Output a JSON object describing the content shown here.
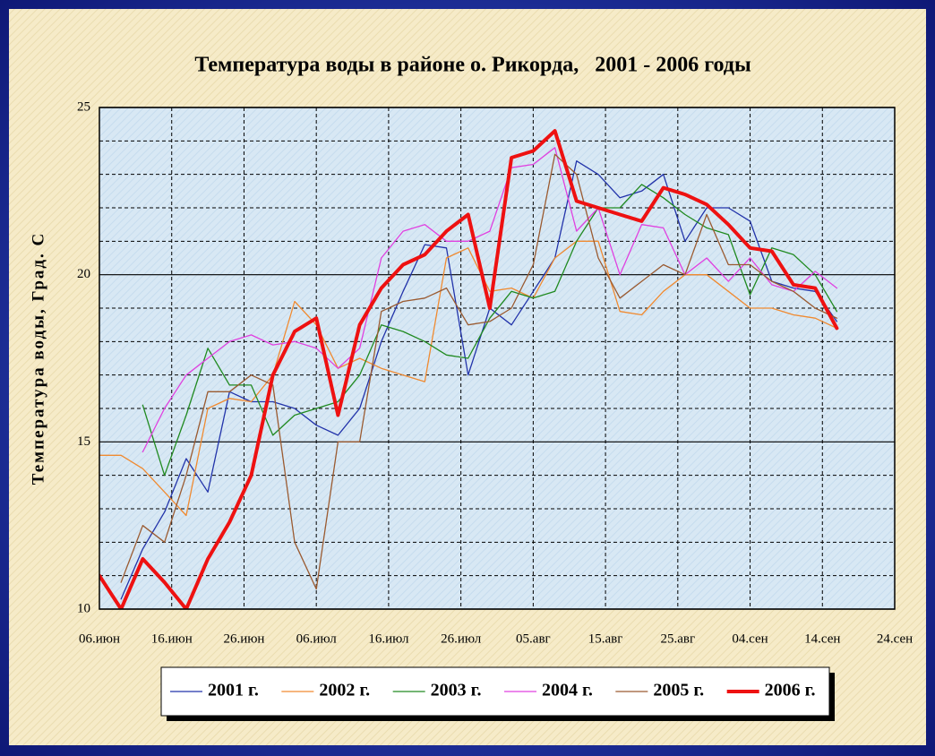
{
  "chart_data": {
    "type": "line",
    "title": "Температура воды в районе о. Рикорда,   2001 - 2006 годы",
    "ylabel": "Температура воды, Град. С",
    "x": [
      "06.июн",
      "09.июн",
      "12.июн",
      "15.июн",
      "18.июн",
      "21.июн",
      "24.июн",
      "27.июн",
      "30.июн",
      "03.июл",
      "06.июл",
      "09.июл",
      "12.июл",
      "15.июл",
      "18.июл",
      "21.июл",
      "24.июл",
      "27.июл",
      "30.июл",
      "02.авг",
      "05.авг",
      "08.авг",
      "11.авг",
      "14.авг",
      "17.авг",
      "20.авг",
      "23.авг",
      "26.авг",
      "29.авг",
      "01.сен",
      "04.сен",
      "07.сен",
      "10.сен",
      "13.сен",
      "16.сен",
      "19.сен"
    ],
    "xticks": [
      "06.июн",
      "16.июн",
      "26.июн",
      "06.июл",
      "16.июл",
      "26.июл",
      "05.авг",
      "15.авг",
      "25.авг",
      "04.сен",
      "14.сен",
      "24.сен"
    ],
    "ylim": [
      10,
      25
    ],
    "yticks": [
      10,
      15,
      20,
      25
    ],
    "yminor": [
      11,
      12,
      13,
      14,
      16,
      17,
      18,
      19,
      21,
      22,
      23,
      24
    ],
    "grid": true,
    "legend": "bottom",
    "series": [
      {
        "name": "2001 г.",
        "color": "#2233aa",
        "width": 1.3,
        "values": [
          null,
          10.3,
          11.8,
          12.9,
          14.5,
          13.5,
          16.5,
          16.2,
          16.2,
          16.0,
          15.5,
          15.2,
          16.0,
          18.0,
          19.5,
          20.9,
          20.8,
          17.0,
          19.0,
          18.5,
          19.5,
          20.5,
          23.4,
          23.0,
          22.3,
          22.5,
          23.0,
          21.0,
          22.0,
          22.0,
          21.6,
          19.8,
          19.6,
          19.5,
          18.6,
          null
        ]
      },
      {
        "name": "2002 г.",
        "color": "#f08a30",
        "width": 1.3,
        "values": [
          14.6,
          14.6,
          14.2,
          13.5,
          12.8,
          16.0,
          16.3,
          16.2,
          17.0,
          19.2,
          18.5,
          17.2,
          17.5,
          17.2,
          17.0,
          16.8,
          20.5,
          20.8,
          19.5,
          19.6,
          19.3,
          20.5,
          21.0,
          21.0,
          18.9,
          18.8,
          19.5,
          20.0,
          20.0,
          19.5,
          19.0,
          19.0,
          18.8,
          18.7,
          18.4,
          null
        ]
      },
      {
        "name": "2003 г.",
        "color": "#208a20",
        "width": 1.3,
        "values": [
          null,
          null,
          16.1,
          14.0,
          15.8,
          17.8,
          16.7,
          16.7,
          15.2,
          15.8,
          16.0,
          16.2,
          17.0,
          18.5,
          18.3,
          18.0,
          17.6,
          17.5,
          18.7,
          19.5,
          19.3,
          19.5,
          21.0,
          22.0,
          22.0,
          22.7,
          22.3,
          21.8,
          21.4,
          21.2,
          19.4,
          20.8,
          20.6,
          20.0,
          18.9,
          null
        ]
      },
      {
        "name": "2004 г.",
        "color": "#e040e0",
        "width": 1.3,
        "values": [
          null,
          null,
          14.7,
          16.0,
          17.0,
          17.5,
          18.0,
          18.2,
          17.9,
          18.0,
          17.8,
          17.2,
          17.8,
          20.5,
          21.3,
          21.5,
          21.0,
          21.0,
          21.3,
          23.2,
          23.3,
          23.8,
          21.3,
          22.0,
          20.0,
          21.5,
          21.4,
          20.0,
          20.5,
          19.8,
          20.5,
          19.7,
          19.5,
          20.1,
          19.6,
          null
        ]
      },
      {
        "name": "2005 г.",
        "color": "#9a5a30",
        "width": 1.3,
        "values": [
          null,
          10.8,
          12.5,
          12.0,
          14.0,
          16.5,
          16.5,
          17.0,
          16.7,
          12.0,
          10.6,
          15.0,
          15.0,
          18.9,
          19.2,
          19.3,
          19.6,
          18.5,
          18.6,
          19.0,
          20.3,
          23.6,
          23.0,
          20.5,
          19.3,
          19.8,
          20.3,
          20.0,
          21.8,
          20.3,
          20.3,
          19.8,
          19.5,
          19.0,
          18.7,
          null
        ]
      },
      {
        "name": "2006 г.",
        "color": "#ee1111",
        "width": 4,
        "values": [
          11.0,
          10.0,
          11.5,
          10.8,
          10.0,
          11.5,
          12.6,
          14.0,
          17.0,
          18.3,
          18.7,
          15.8,
          18.5,
          19.6,
          20.3,
          20.6,
          21.3,
          21.8,
          19.0,
          23.5,
          23.7,
          24.3,
          22.2,
          22.0,
          21.8,
          21.6,
          22.6,
          22.4,
          22.1,
          21.5,
          20.8,
          20.7,
          19.7,
          19.6,
          18.4,
          null
        ]
      }
    ]
  }
}
